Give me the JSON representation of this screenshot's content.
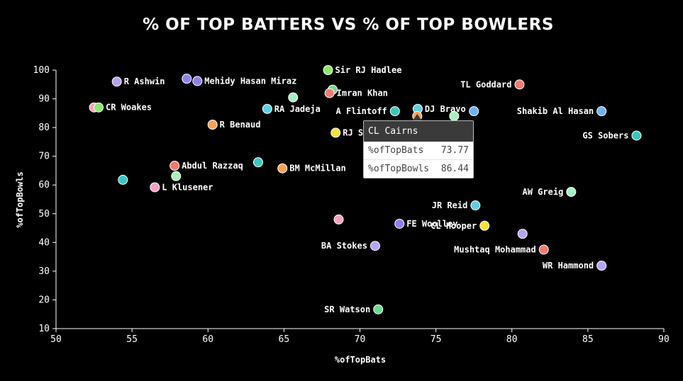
{
  "chart_data": {
    "type": "scatter",
    "title": "% OF TOP BATTERS VS % OF TOP BOWLERS",
    "xlabel": "%ofTopBats",
    "ylabel": "%ofTopBowls",
    "xlim": [
      50,
      90
    ],
    "ylim": [
      10,
      100
    ],
    "xticks": [
      50,
      55,
      60,
      65,
      70,
      75,
      80,
      85,
      90
    ],
    "yticks": [
      10,
      20,
      30,
      40,
      50,
      60,
      70,
      80,
      90,
      100
    ],
    "grid": false,
    "points": [
      {
        "label": "R Ashwin",
        "x": 54.0,
        "y": 96.0,
        "color": "#b7a4f2"
      },
      {
        "label": "",
        "x": 58.6,
        "y": 97.0,
        "color": "#8a84ee"
      },
      {
        "label": "Mehidy Hasan Miraz",
        "x": 59.3,
        "y": 96.2,
        "color": "#8a84ee"
      },
      {
        "label": "Sir RJ Hadlee",
        "x": 67.9,
        "y": 100.0,
        "color": "#8ee86b"
      },
      {
        "label": "",
        "x": 68.2,
        "y": 93.2,
        "color": "#6fd98e"
      },
      {
        "label": "Imran Khan",
        "x": 68.0,
        "y": 92.0,
        "color": "#f07b73"
      },
      {
        "label": "",
        "x": 65.6,
        "y": 90.5,
        "color": "#a6f0c0"
      },
      {
        "label": "TL Goddard",
        "x": 80.5,
        "y": 95.0,
        "color": "#f07b73"
      },
      {
        "label": "",
        "x": 52.5,
        "y": 87.0,
        "color": "#f5a3c3"
      },
      {
        "label": "CR Woakes",
        "x": 52.8,
        "y": 87.0,
        "color": "#8ee86b"
      },
      {
        "label": "RA Jadeja",
        "x": 63.9,
        "y": 86.5,
        "color": "#5fd0e0"
      },
      {
        "label": "A Flintoff",
        "x": 72.3,
        "y": 85.7,
        "color": "#3cc6c0"
      },
      {
        "label": "DJ Bravo",
        "x": 73.8,
        "y": 86.5,
        "color": "#5fd0e0"
      },
      {
        "label": "",
        "x": 77.5,
        "y": 85.7,
        "color": "#6bb3f2"
      },
      {
        "label": "",
        "x": 73.77,
        "y": 84.0,
        "color": "#f7a14f"
      },
      {
        "label": "",
        "x": 76.2,
        "y": 84.0,
        "color": "#a6f0c0"
      },
      {
        "label": "Shakib Al Hasan",
        "x": 85.9,
        "y": 85.7,
        "color": "#6bb3f2"
      },
      {
        "label": "R Benaud",
        "x": 60.3,
        "y": 81.0,
        "color": "#f7a14f"
      },
      {
        "label": "RJ S",
        "x": 68.4,
        "y": 78.2,
        "color": "#f5e23a"
      },
      {
        "label": "GS Sobers",
        "x": 88.2,
        "y": 77.2,
        "color": "#3cc6c0"
      },
      {
        "label": "",
        "x": 63.3,
        "y": 67.9,
        "color": "#3cc6c0"
      },
      {
        "label": "Abdul Razzaq",
        "x": 57.8,
        "y": 66.7,
        "color": "#f07b73"
      },
      {
        "label": "BM McMillan",
        "x": 64.9,
        "y": 65.8,
        "color": "#f7a14f"
      },
      {
        "label": "",
        "x": 57.9,
        "y": 63.1,
        "color": "#a6f0c0"
      },
      {
        "label": "",
        "x": 54.4,
        "y": 61.8,
        "color": "#3cc6c0"
      },
      {
        "label": "L Klusener",
        "x": 56.5,
        "y": 59.2,
        "color": "#f5a3c3"
      },
      {
        "label": "AW Greig",
        "x": 83.9,
        "y": 57.6,
        "color": "#a6f0c0"
      },
      {
        "label": "JR Reid",
        "x": 77.6,
        "y": 52.9,
        "color": "#5fd0e0"
      },
      {
        "label": "",
        "x": 68.6,
        "y": 48.0,
        "color": "#f5a3c3"
      },
      {
        "label": "FE Woolley",
        "x": 72.6,
        "y": 46.5,
        "color": "#8a84ee"
      },
      {
        "label": "CL Hooper",
        "x": 78.2,
        "y": 45.8,
        "color": "#f5e23a"
      },
      {
        "label": "",
        "x": 80.7,
        "y": 43.0,
        "color": "#b7a4f2"
      },
      {
        "label": "BA Stokes",
        "x": 71.0,
        "y": 38.8,
        "color": "#b7a4f2"
      },
      {
        "label": "Mushtaq Mohammad",
        "x": 82.1,
        "y": 37.5,
        "color": "#f07b73"
      },
      {
        "label": "WR Hammond",
        "x": 85.9,
        "y": 31.9,
        "color": "#b7a4f2"
      },
      {
        "label": "SR Watson",
        "x": 71.2,
        "y": 16.7,
        "color": "#6fd98e"
      }
    ]
  },
  "tooltip": {
    "title": "CL Cairns",
    "rows": [
      {
        "name": "%ofTopBats",
        "value": "73.77"
      },
      {
        "name": "%ofTopBowls",
        "value": "86.44"
      }
    ]
  }
}
